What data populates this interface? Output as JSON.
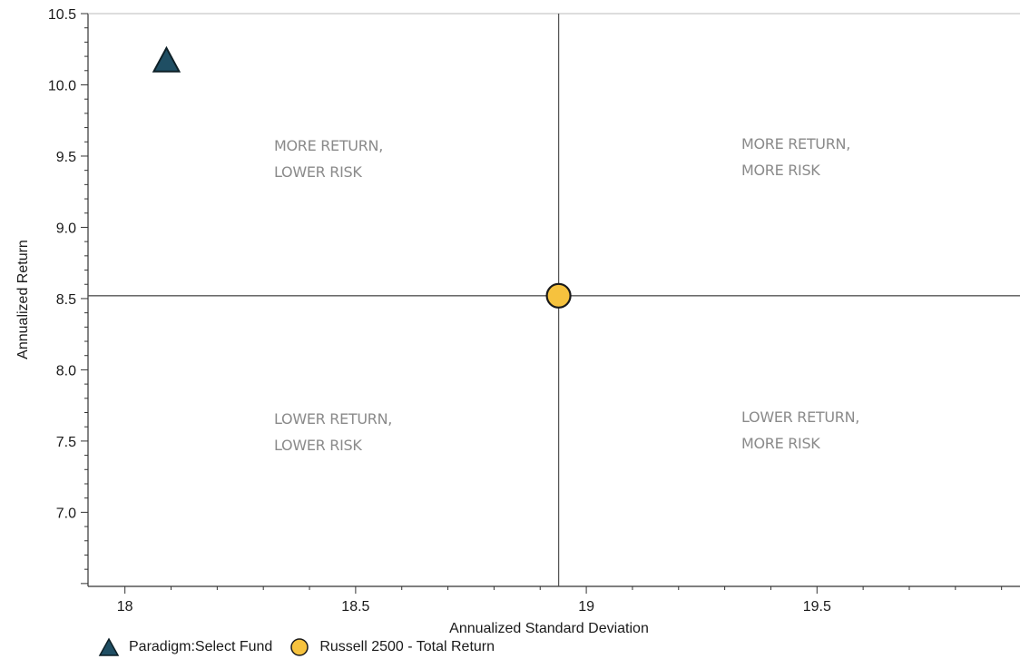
{
  "chart_data": {
    "type": "scatter",
    "xlabel": "Annualized Standard Deviation",
    "ylabel": "Annualized Return",
    "xlim": [
      17.92,
      19.94
    ],
    "ylim": [
      6.48,
      10.5
    ],
    "x_ticks": [
      18,
      18.5,
      19,
      19.5
    ],
    "x_tick_labels": [
      "18",
      "18.5",
      "19",
      "19.5"
    ],
    "y_ticks": [
      7.0,
      7.5,
      8.0,
      8.5,
      9.0,
      9.5,
      10.0,
      10.5
    ],
    "y_tick_labels": [
      "7.0",
      "7.5",
      "8.0",
      "8.5",
      "9.0",
      "9.5",
      "10.0",
      "10.5"
    ],
    "crosshair": {
      "x": 18.94,
      "y": 8.52
    },
    "quadrant_labels": {
      "top_left": [
        "MORE RETURN,",
        "LOWER RISK"
      ],
      "top_right": [
        "MORE RETURN,",
        "MORE RISK"
      ],
      "bottom_left": [
        "LOWER RETURN,",
        "LOWER RISK"
      ],
      "bottom_right": [
        "LOWER RETURN,",
        "MORE RISK"
      ]
    },
    "series": [
      {
        "name": "Paradigm:Select Fund",
        "marker": "triangle",
        "color": "#1f4e63",
        "points": [
          {
            "x": 18.09,
            "y": 10.17
          }
        ]
      },
      {
        "name": "Russell 2500 - Total Return",
        "marker": "circle",
        "color": "#f6c23e",
        "points": [
          {
            "x": 18.94,
            "y": 8.52
          }
        ]
      }
    ],
    "legend_position": "bottom-left",
    "grid": false
  }
}
